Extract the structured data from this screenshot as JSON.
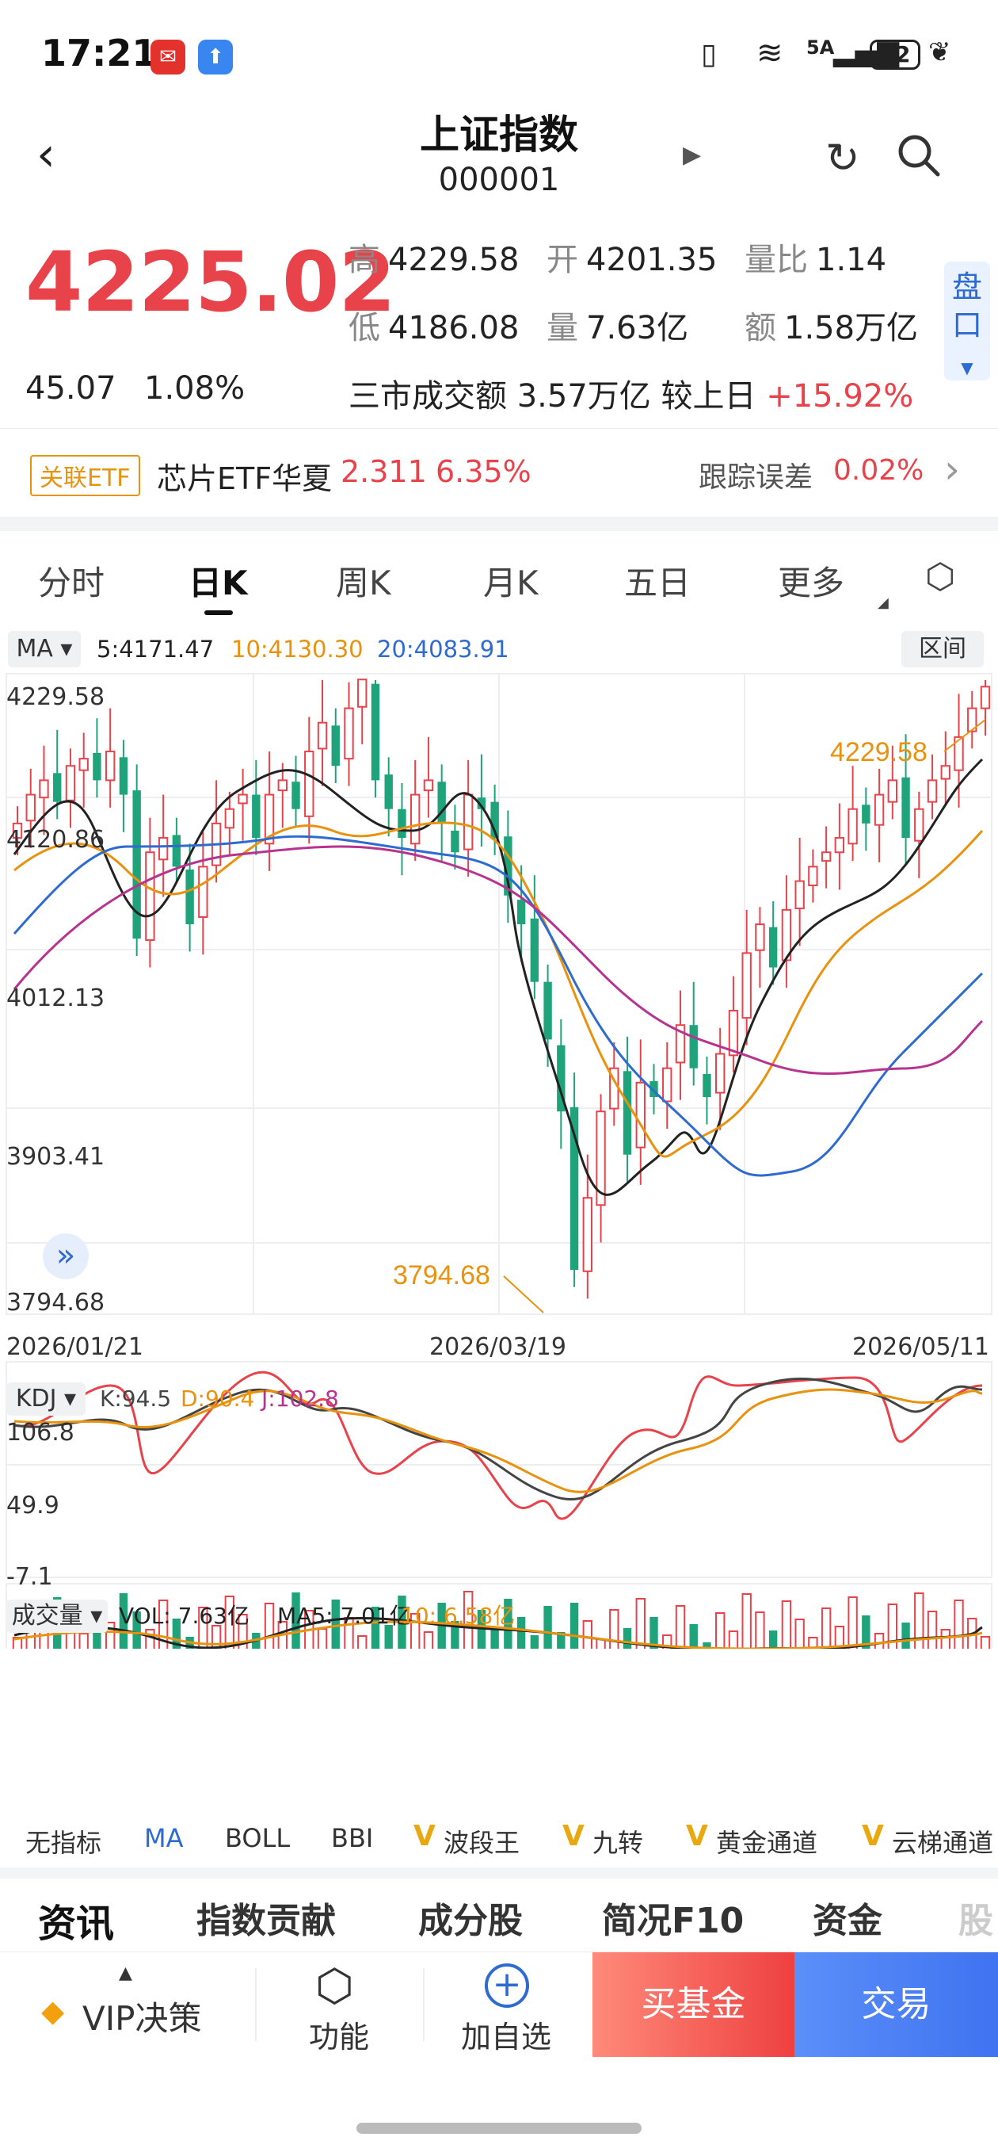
{
  "status_bar": {
    "time": "17:21",
    "network": "5A",
    "battery": "32"
  },
  "header": {
    "title": "上证指数",
    "code": "000001"
  },
  "quote": {
    "price": "4225.02",
    "change": "45.07",
    "change_pct": "1.08%",
    "high_label": "高",
    "high": "4229.58",
    "open_label": "开",
    "open": "4201.35",
    "ratio_label": "量比",
    "ratio": "1.14",
    "low_label": "低",
    "low": "4186.08",
    "volume_label": "量",
    "volume": "7.63亿",
    "amount_label": "额",
    "amount": "1.58万亿",
    "market_text": "三市成交额 3.57万亿 较上日",
    "market_change": "+15.92%",
    "pankou": "盘口"
  },
  "etf": {
    "tag": "关联ETF",
    "name": "芯片ETF华夏",
    "price": "2.311",
    "pct": "6.35%",
    "error_label": "跟踪误差",
    "error": "0.02%"
  },
  "tabs": [
    "分时",
    "日K",
    "周K",
    "月K",
    "五日",
    "更多"
  ],
  "ma_bar": {
    "label": "MA",
    "ma5": "5:4171.47",
    "ma10": "10:4130.30",
    "ma20": "20:4083.91",
    "range_btn": "区间"
  },
  "price_axis": [
    "4229.58",
    "4120.86",
    "4012.13",
    "3903.41",
    "3794.68"
  ],
  "annotations": {
    "high": "4229.58",
    "low": "3794.68"
  },
  "dates": [
    "2026/01/21",
    "2026/03/19",
    "2026/05/11"
  ],
  "kdj": {
    "label": "KDJ",
    "k": "K:94.5",
    "d": "D:90.4",
    "j": "J:102.8",
    "axis": [
      "106.8",
      "49.9",
      "-7.1"
    ]
  },
  "vol": {
    "label": "成交量",
    "vol": "VOL: 7.63亿",
    "ma5": "MA5: 7.01亿",
    "ma10": "10: 6.58亿"
  },
  "indicators": [
    "无指标",
    "MA",
    "BOLL",
    "BBI",
    "波段王",
    "九转",
    "黄金通道",
    "云梯通道"
  ],
  "info_tabs": [
    "资讯",
    "指数贡献",
    "成分股",
    "简况F10",
    "资金",
    "股"
  ],
  "bottom": {
    "vip": "VIP决策",
    "func": "功能",
    "add": "加自选",
    "buy": "买基金",
    "trade": "交易"
  },
  "colors": {
    "up": "#e8424b",
    "down": "#1fa37a",
    "ma5": "#222222",
    "ma10": "#e8920e",
    "ma20": "#2e6bd1",
    "ma60": "#b8338f"
  },
  "chart_data": {
    "type": "candlestick",
    "x_range": [
      "2026/01/21",
      "2026/05/11"
    ],
    "ylim": [
      3794.68,
      4229.58
    ],
    "close_approx": [
      4130,
      4150,
      4160,
      4145,
      4170,
      4175,
      4160,
      4180,
      4150,
      4050,
      4110,
      4120,
      4100,
      4060,
      4100,
      4130,
      4140,
      4150,
      4120,
      4150,
      4160,
      4140,
      4180,
      4200,
      4170,
      4210,
      4230,
      4160,
      4140,
      4120,
      4150,
      4160,
      4130,
      4110,
      4150,
      4140,
      4120,
      4080,
      4060,
      4020,
      3980,
      3930,
      3820,
      3870,
      3930,
      3960,
      3900,
      3950,
      3940,
      3960,
      3990,
      3960,
      3940,
      3970,
      4000,
      4040,
      4060,
      4030,
      4070,
      4090,
      4100,
      4110,
      4120,
      4140,
      4130,
      4150,
      4160,
      4120,
      4140,
      4160,
      4170,
      4190,
      4210,
      4225
    ],
    "kdj_range": [
      -7.1,
      106.8
    ],
    "volume_label_max": "7.63亿"
  }
}
